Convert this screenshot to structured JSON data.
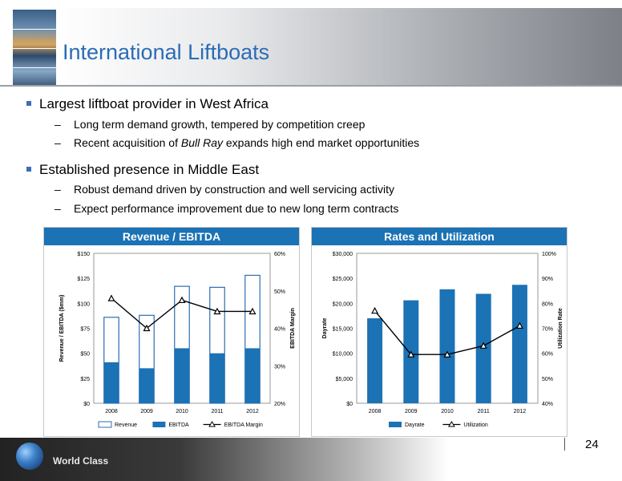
{
  "slide": {
    "title": "International Liftboats",
    "page_number": "24",
    "footer_text": "World Class"
  },
  "bullets": [
    {
      "text": "Largest liftboat provider in West Africa",
      "sub": [
        {
          "text": "Long term demand growth, tempered by competition creep"
        },
        {
          "pre": "Recent acquisition of ",
          "em": "Bull Ray",
          "post": " expands high end market opportunities"
        }
      ]
    },
    {
      "text": "Established presence in Middle East",
      "sub": [
        {
          "text": "Robust demand driven by construction and well servicing activity"
        },
        {
          "text": "Expect performance improvement due to new long term contracts"
        }
      ]
    }
  ],
  "colors": {
    "title_blue": "#2b6cb5",
    "bar_blue": "#1b72b4",
    "header_blue": "#1b72b4"
  },
  "chart_data": [
    {
      "type": "bar",
      "title": "Revenue / EBITDA",
      "categories": [
        "2008",
        "2009",
        "2010",
        "2011",
        "2012"
      ],
      "series": [
        {
          "name": "Revenue",
          "kind": "bar-outline",
          "values": [
            86,
            88,
            117,
            116,
            128
          ]
        },
        {
          "name": "EBITDA",
          "kind": "bar-fill",
          "values": [
            41,
            35,
            55,
            50,
            55
          ]
        },
        {
          "name": "EBITDA Margin",
          "kind": "line-secondary",
          "values": [
            48,
            40,
            47.5,
            44.5,
            44.5
          ]
        }
      ],
      "ylabel": "Revenue / EBITDA ($mm)",
      "y2label": "EBITDA Margin",
      "ylim": [
        0,
        150
      ],
      "y2lim": [
        20,
        60
      ],
      "yticks": [
        "$0",
        "$25",
        "$50",
        "$75",
        "$100",
        "$125",
        "$150"
      ],
      "y2ticks": [
        "20%",
        "30%",
        "40%",
        "50%",
        "60%"
      ],
      "legend": "bottom",
      "grid": false
    },
    {
      "type": "bar",
      "title": "Rates and Utilization",
      "categories": [
        "2008",
        "2009",
        "2010",
        "2011",
        "2012"
      ],
      "series": [
        {
          "name": "Dayrate",
          "kind": "bar-fill",
          "values": [
            17000,
            20600,
            22800,
            21900,
            23700
          ]
        },
        {
          "name": "Utilization",
          "kind": "line-secondary",
          "values": [
            77,
            59.5,
            59.5,
            63,
            71
          ]
        }
      ],
      "ylabel": "Dayrate",
      "y2label": "Utilization Rate",
      "ylim": [
        0,
        30000
      ],
      "y2lim": [
        40,
        100
      ],
      "yticks": [
        "$0",
        "$5,000",
        "$10,000",
        "$15,000",
        "$20,000",
        "$25,000",
        "$30,000"
      ],
      "y2ticks": [
        "40%",
        "50%",
        "60%",
        "70%",
        "80%",
        "90%",
        "100%"
      ],
      "legend": "bottom",
      "grid": false
    }
  ]
}
